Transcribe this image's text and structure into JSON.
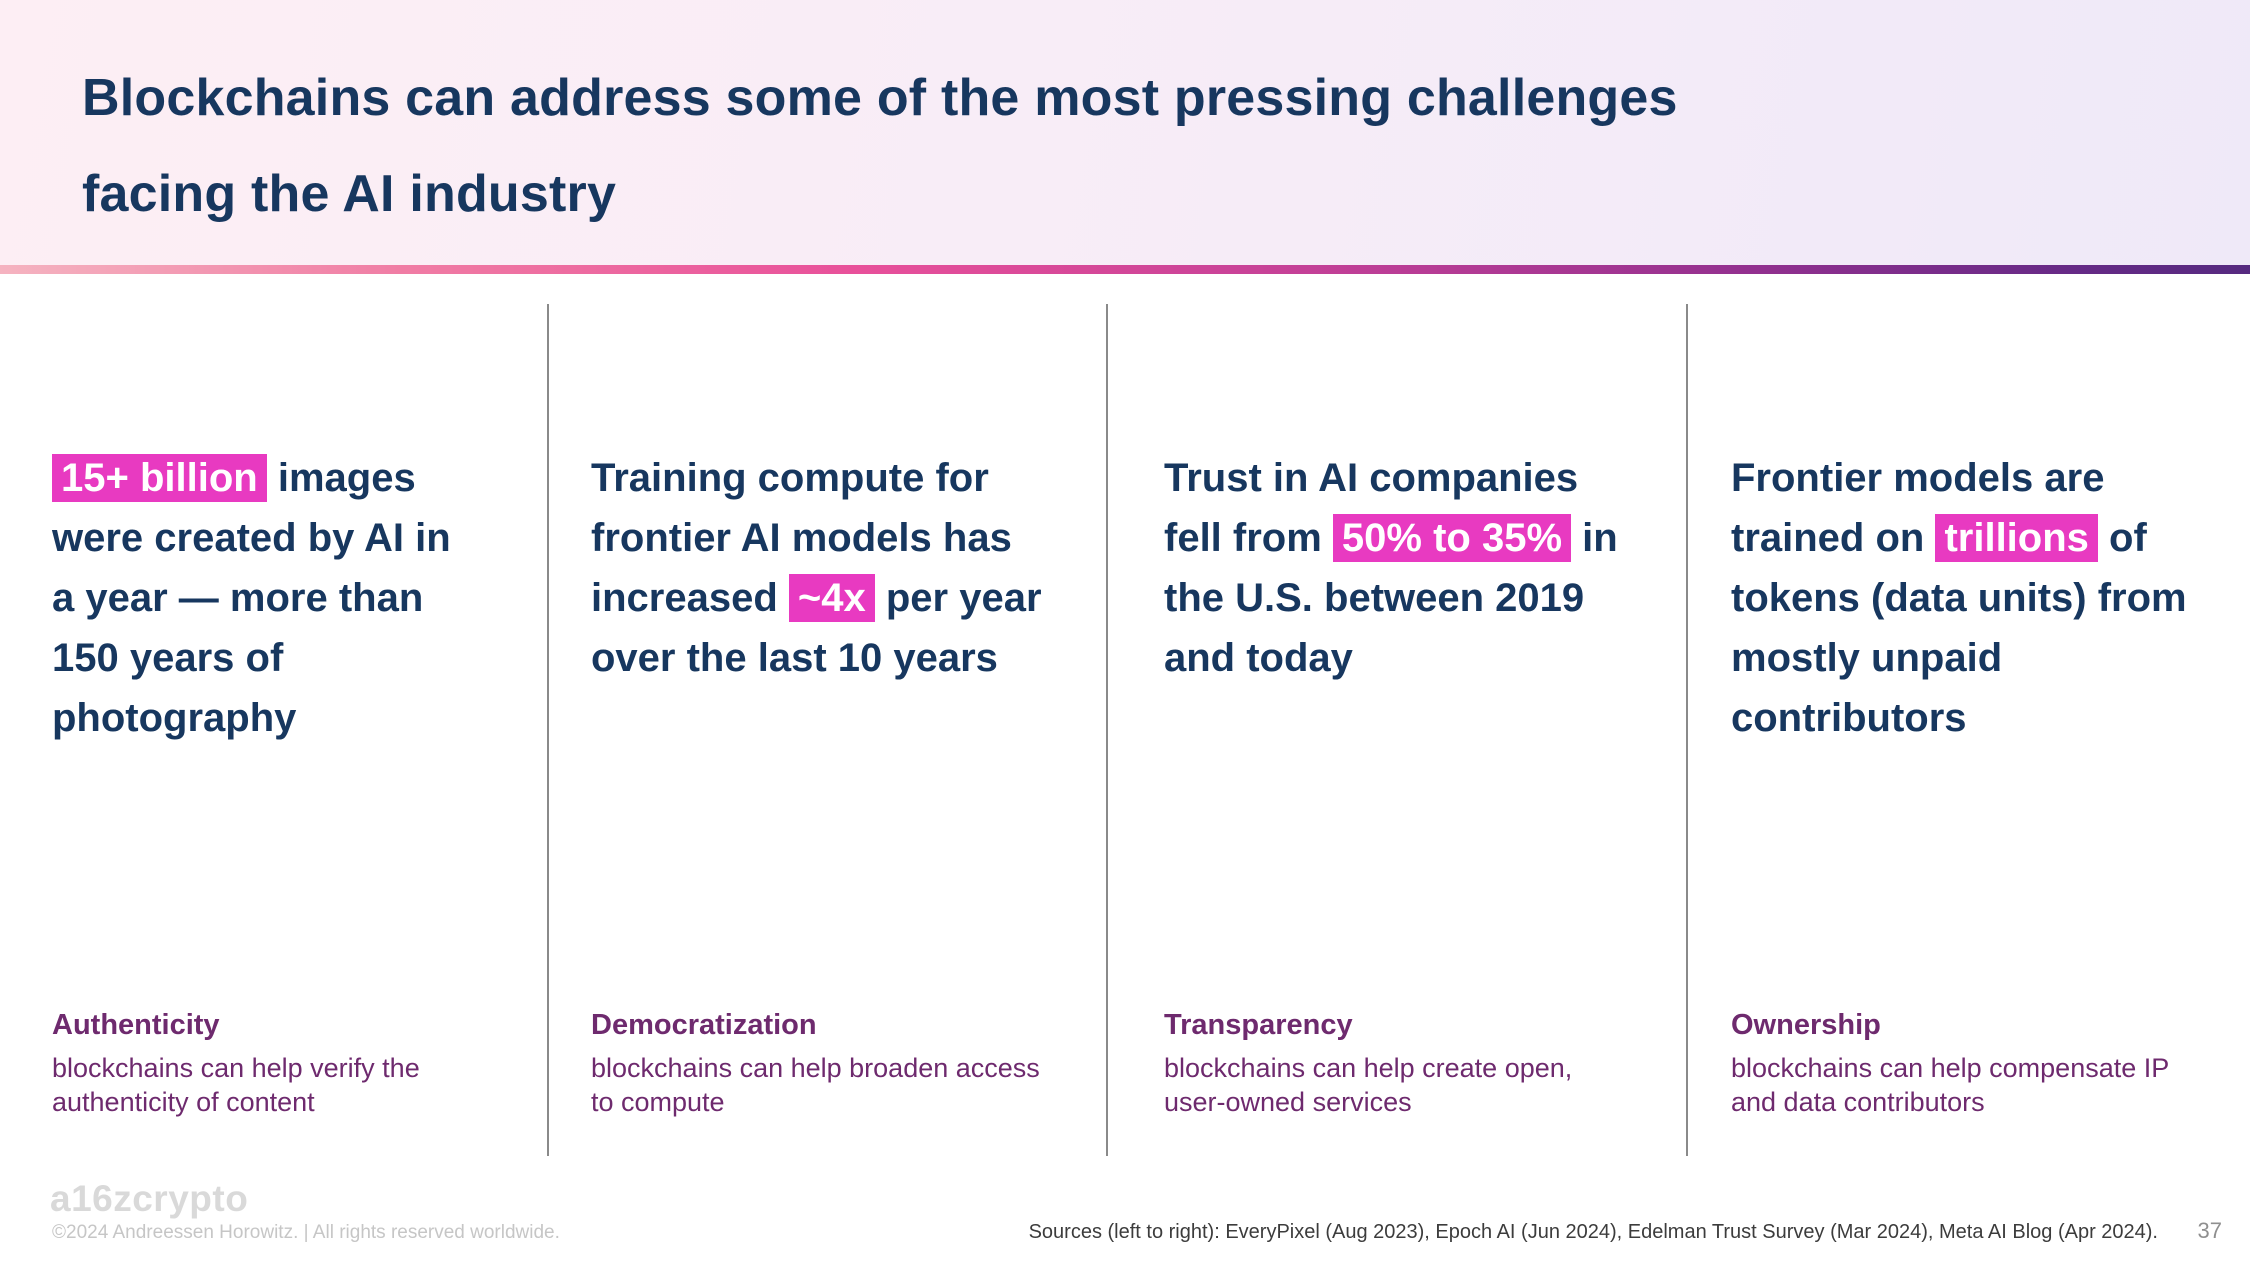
{
  "header": {
    "title_lines": [
      "Blockchains can address some of the most pressing challenges",
      "facing the AI industry"
    ]
  },
  "columns": [
    {
      "pre": "",
      "highlight": "15+ billion",
      "post": " images were created by AI in a year — more than 150 years of photography",
      "category": "Authenticity",
      "description": "blockchains can help verify the authenticity of content"
    },
    {
      "pre": "Training compute for frontier AI models has increased ",
      "highlight": "~4x",
      "post": " per year over the last 10 years",
      "category": "Democratization",
      "description": "blockchains can help broaden access to compute"
    },
    {
      "pre": "Trust in AI companies fell from ",
      "highlight": "50% to 35%",
      "post": " in the U.S. between 2019 and today",
      "category": "Transparency",
      "description": "blockchains can help create open, user-owned services"
    },
    {
      "pre": "Frontier models are trained on ",
      "highlight": "trillions",
      "post": " of tokens (data units) from mostly unpaid contributors",
      "category": "Ownership",
      "description": "blockchains can help compensate IP and data contributors"
    }
  ],
  "footer": {
    "logo": "a16zcrypto",
    "copyright": "©2024 Andreessen Horowitz.  |  All rights reserved worldwide.",
    "sources": "Sources (left to right): EveryPixel (Aug 2023), Epoch AI (Jun 2024), Edelman Trust Survey (Mar 2024), Meta AI Blog (Apr 2024).",
    "page_number": "37"
  },
  "colors": {
    "title_navy": "#17375f",
    "highlight_magenta": "#e83ac1",
    "category_purple": "#6e2a6e",
    "accent_bar_start": "#f5b3c0",
    "accent_bar_mid": "#e8509a",
    "accent_bar_end": "#562a80"
  }
}
